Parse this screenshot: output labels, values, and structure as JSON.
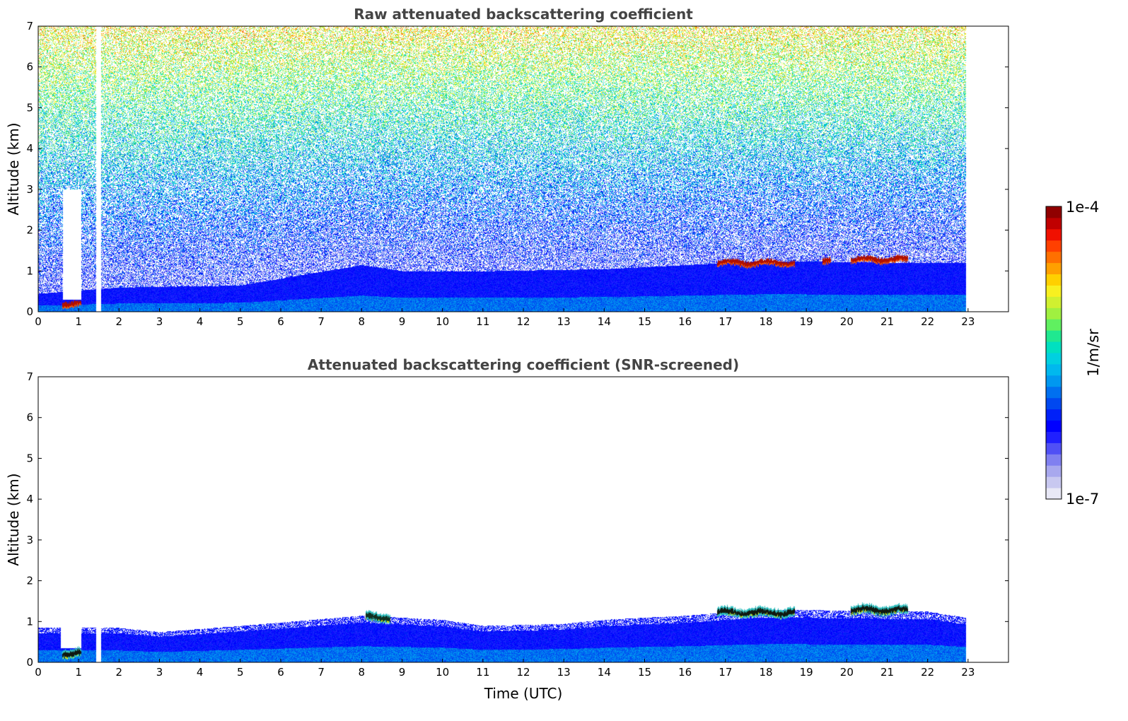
{
  "figure": {
    "colorbar": {
      "label": "1/m/sr",
      "max_label": "1e-4",
      "min_label": "1e-7",
      "colors": [
        "#e8e8f6",
        "#c8c8f0",
        "#a8a8ee",
        "#8080f0",
        "#5050f5",
        "#2020ff",
        "#0000ff",
        "#0020f8",
        "#0048f0",
        "#0070f0",
        "#0098f0",
        "#00b8ee",
        "#00d0e0",
        "#00e0c0",
        "#20e890",
        "#60f060",
        "#a0f040",
        "#d0f030",
        "#f8f020",
        "#ffd000",
        "#ffa000",
        "#ff7000",
        "#ff4000",
        "#f01000",
        "#c00000",
        "#900000"
      ]
    }
  },
  "chart_data": [
    {
      "type": "heatmap",
      "title": "Raw attenuated backscattering coefficient",
      "xlabel": "",
      "ylabel": "Altitude (km)",
      "xlim": [
        0,
        24
      ],
      "ylim": [
        0,
        7
      ],
      "x_ticks": [
        "0",
        "1",
        "2",
        "3",
        "4",
        "5",
        "6",
        "7",
        "8",
        "9",
        "10",
        "11",
        "12",
        "13",
        "14",
        "15",
        "16",
        "17",
        "18",
        "19",
        "20",
        "21",
        "22",
        "23"
      ],
      "y_ticks": [
        "0",
        "1",
        "2",
        "3",
        "4",
        "5",
        "6",
        "7"
      ],
      "data_extent_time": [
        0,
        22.95
      ],
      "gaps": [
        {
          "time_start": 0.6,
          "time_end": 1.05,
          "altitude_bottom": 0.3,
          "altitude_top": 3.0
        },
        {
          "time_start": 1.43,
          "time_end": 1.55,
          "altitude_bottom": 0,
          "altitude_top": 7
        }
      ],
      "boundary_layer_top_km": [
        [
          0,
          0.45
        ],
        [
          2,
          0.6
        ],
        [
          5,
          0.65
        ],
        [
          8,
          1.15
        ],
        [
          9,
          1.0
        ],
        [
          11,
          1.0
        ],
        [
          14,
          1.05
        ],
        [
          16,
          1.15
        ],
        [
          18,
          1.25
        ],
        [
          22,
          1.2
        ],
        [
          22.95,
          1.2
        ]
      ],
      "cloud_layers": [
        {
          "time_start": 0.6,
          "time_end": 1.05,
          "altitude_km": 0.2,
          "intensity": "high"
        },
        {
          "time_start": 16.8,
          "time_end": 18.7,
          "altitude_km": 1.2,
          "intensity": "high"
        },
        {
          "time_start": 19.4,
          "time_end": 19.6,
          "altitude_km": 1.25,
          "intensity": "high"
        },
        {
          "time_start": 20.1,
          "time_end": 21.5,
          "altitude_km": 1.28,
          "intensity": "high"
        }
      ],
      "noise_present": true
    },
    {
      "type": "heatmap",
      "title": "Attenuated backscattering coefficient (SNR-screened)",
      "xlabel": "Time (UTC)",
      "ylabel": "Altitude (km)",
      "xlim": [
        0,
        24
      ],
      "ylim": [
        0,
        7
      ],
      "x_ticks": [
        "0",
        "1",
        "2",
        "3",
        "4",
        "5",
        "6",
        "7",
        "8",
        "9",
        "10",
        "11",
        "12",
        "13",
        "14",
        "15",
        "16",
        "17",
        "18",
        "19",
        "20",
        "21",
        "22",
        "23"
      ],
      "y_ticks": [
        "0",
        "1",
        "2",
        "3",
        "4",
        "5",
        "6",
        "7"
      ],
      "data_extent_time": [
        0,
        22.95
      ],
      "gaps": [
        {
          "time_start": 0.55,
          "time_end": 1.05,
          "altitude_bottom": 0.35,
          "altitude_top": 0.95
        },
        {
          "time_start": 1.43,
          "time_end": 1.55,
          "altitude_bottom": 0,
          "altitude_top": 7
        }
      ],
      "boundary_layer_top_km": [
        [
          0,
          0.85
        ],
        [
          2,
          0.85
        ],
        [
          3,
          0.75
        ],
        [
          5,
          0.9
        ],
        [
          8,
          1.15
        ],
        [
          10,
          1.05
        ],
        [
          11,
          0.9
        ],
        [
          13,
          0.95
        ],
        [
          14,
          1.05
        ],
        [
          16,
          1.15
        ],
        [
          18,
          1.3
        ],
        [
          22,
          1.25
        ],
        [
          22.95,
          1.1
        ]
      ],
      "cloud_layers": [
        {
          "time_start": 0.6,
          "time_end": 1.05,
          "altitude_km": 0.22,
          "intensity": "very high"
        },
        {
          "time_start": 8.1,
          "time_end": 8.7,
          "altitude_km": 1.1,
          "intensity": "moderate"
        },
        {
          "time_start": 16.8,
          "time_end": 18.7,
          "altitude_km": 1.22,
          "intensity": "very high"
        },
        {
          "time_start": 20.1,
          "time_end": 21.5,
          "altitude_km": 1.28,
          "intensity": "very high"
        }
      ],
      "noise_present": false
    }
  ]
}
